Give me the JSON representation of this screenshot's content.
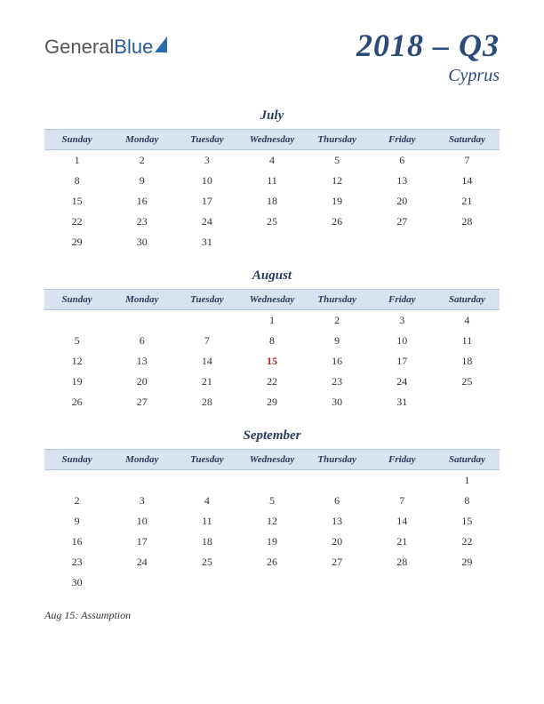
{
  "logo": {
    "part1": "General",
    "part2": "Blue"
  },
  "header": {
    "period": "2018 – Q3",
    "country": "Cyprus"
  },
  "dayHeaders": [
    "Sunday",
    "Monday",
    "Tuesday",
    "Wednesday",
    "Thursday",
    "Friday",
    "Saturday"
  ],
  "months": [
    {
      "name": "July",
      "weeks": [
        [
          "1",
          "2",
          "3",
          "4",
          "5",
          "6",
          "7"
        ],
        [
          "8",
          "9",
          "10",
          "11",
          "12",
          "13",
          "14"
        ],
        [
          "15",
          "16",
          "17",
          "18",
          "19",
          "20",
          "21"
        ],
        [
          "22",
          "23",
          "24",
          "25",
          "26",
          "27",
          "28"
        ],
        [
          "29",
          "30",
          "31",
          "",
          "",
          "",
          ""
        ]
      ],
      "holidays": []
    },
    {
      "name": "August",
      "weeks": [
        [
          "",
          "",
          "",
          "1",
          "2",
          "3",
          "4"
        ],
        [
          "5",
          "6",
          "7",
          "8",
          "9",
          "10",
          "11"
        ],
        [
          "12",
          "13",
          "14",
          "15",
          "16",
          "17",
          "18"
        ],
        [
          "19",
          "20",
          "21",
          "22",
          "23",
          "24",
          "25"
        ],
        [
          "26",
          "27",
          "28",
          "29",
          "30",
          "31",
          ""
        ]
      ],
      "holidays": [
        "15"
      ]
    },
    {
      "name": "September",
      "weeks": [
        [
          "",
          "",
          "",
          "",
          "",
          "",
          "1"
        ],
        [
          "2",
          "3",
          "4",
          "5",
          "6",
          "7",
          "8"
        ],
        [
          "9",
          "10",
          "11",
          "12",
          "13",
          "14",
          "15"
        ],
        [
          "16",
          "17",
          "18",
          "19",
          "20",
          "21",
          "22"
        ],
        [
          "23",
          "24",
          "25",
          "26",
          "27",
          "28",
          "29"
        ],
        [
          "30",
          "",
          "",
          "",
          "",
          "",
          ""
        ]
      ],
      "holidays": []
    }
  ],
  "notes": [
    "Aug 15: Assumption"
  ],
  "colors": {
    "headerBg": "#d8e2f0",
    "headerBorder": "#b8c8dd",
    "titleColor": "#2a4a7a",
    "textColor": "#333333",
    "holidayColor": "#c02020",
    "background": "#ffffff"
  },
  "typography": {
    "periodFontSize": 36,
    "countryFontSize": 20,
    "monthNameFontSize": 15,
    "dayHeaderFontSize": 11,
    "cellFontSize": 12,
    "notesFontSize": 12
  }
}
